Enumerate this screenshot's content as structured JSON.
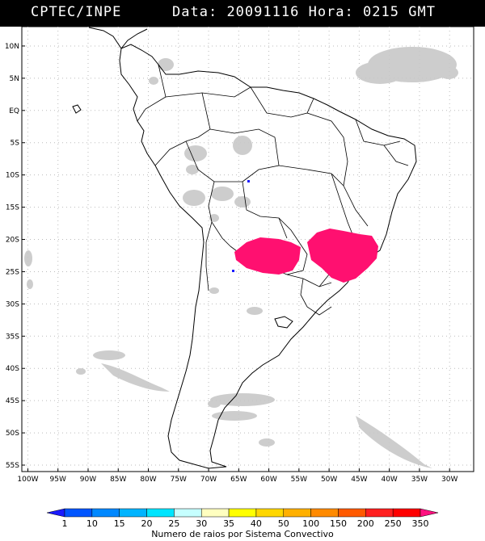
{
  "header": {
    "source": "CPTEC/INPE",
    "data_label": "Data:",
    "date": "20091116",
    "hora_label": "Hora:",
    "time": "0215",
    "tz": "GMT"
  },
  "map": {
    "lat_labels": [
      "10N",
      "5N",
      "EQ",
      "5S",
      "10S",
      "15S",
      "20S",
      "25S",
      "30S",
      "35S",
      "40S",
      "45S",
      "50S",
      "55S"
    ],
    "lat_values": [
      10,
      5,
      0,
      -5,
      -10,
      -15,
      -20,
      -25,
      -30,
      -35,
      -40,
      -45,
      -50,
      -55
    ],
    "lon_labels": [
      "100W",
      "95W",
      "90W",
      "85W",
      "80W",
      "75W",
      "70W",
      "65W",
      "60W",
      "55W",
      "50W",
      "45W",
      "40W",
      "35W",
      "30W"
    ],
    "lon_values": [
      -100,
      -95,
      -90,
      -85,
      -80,
      -75,
      -70,
      -65,
      -60,
      -55,
      -50,
      -45,
      -40,
      -35,
      -30
    ],
    "lat_range": [
      -56,
      13
    ],
    "lon_range": [
      -101,
      -26
    ],
    "grid": "dotted"
  },
  "colorbar": {
    "title": "Numero de raios por Sistema Convectivo",
    "ticks": [
      "1",
      "10",
      "15",
      "20",
      "25",
      "30",
      "35",
      "40",
      "50",
      "100",
      "150",
      "200",
      "250",
      "350"
    ],
    "colors": [
      "#1a1aff",
      "#0055ff",
      "#0088ff",
      "#00b4ff",
      "#00e5ff",
      "#c6ffff",
      "#ffffc0",
      "#ffff00",
      "#ffd700",
      "#ffb000",
      "#ff8a00",
      "#ff5a00",
      "#ff2020",
      "#ff0000",
      "#ff1080"
    ]
  },
  "colors": {
    "lightning": "#ff1070",
    "cloud": "#c8c8c8",
    "land_outline": "#000000",
    "grid": "#bbbbbb"
  }
}
